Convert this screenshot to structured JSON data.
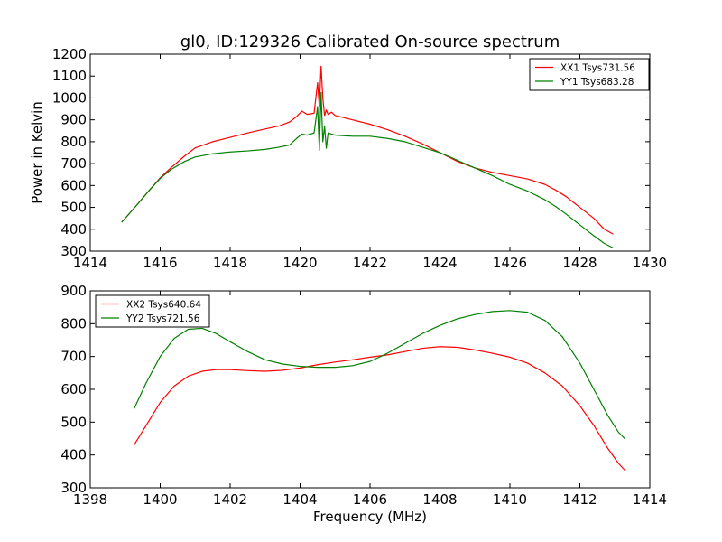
{
  "chart_data": [
    {
      "type": "line",
      "title": "gl0, ID:129326 Calibrated On-source spectrum",
      "xlabel": "",
      "ylabel": "Power in Kelvin",
      "xlim": [
        1414,
        1430
      ],
      "ylim": [
        300,
        1200
      ],
      "xticks": [
        "1414",
        "1416",
        "1418",
        "1420",
        "1422",
        "1424",
        "1426",
        "1428",
        "1430"
      ],
      "yticks": [
        "300",
        "400",
        "500",
        "600",
        "700",
        "800",
        "900",
        "1000",
        "1100",
        "1200"
      ],
      "legend_position": "upper-right",
      "grid": false,
      "series": [
        {
          "name": "XX1 Tsys731.56",
          "color": "#ff0000",
          "x": [
            1414.9,
            1415.3,
            1415.7,
            1416.0,
            1416.3,
            1416.7,
            1417.0,
            1417.5,
            1418.0,
            1418.5,
            1419.0,
            1419.4,
            1419.7,
            1419.9,
            1420.05,
            1420.2,
            1420.4,
            1420.5,
            1420.55,
            1420.6,
            1420.65,
            1420.7,
            1420.75,
            1420.8,
            1420.9,
            1421.0,
            1421.5,
            1422.0,
            1422.5,
            1423.0,
            1423.5,
            1424.0,
            1424.5,
            1425.0,
            1425.5,
            1426.0,
            1426.5,
            1427.0,
            1427.3,
            1427.6,
            1428.0,
            1428.4,
            1428.7,
            1428.95
          ],
          "y": [
            432,
            505,
            580,
            635,
            680,
            735,
            772,
            800,
            820,
            840,
            858,
            872,
            890,
            915,
            940,
            925,
            930,
            1070,
            960,
            1145,
            1000,
            920,
            945,
            925,
            935,
            920,
            900,
            880,
            855,
            825,
            790,
            750,
            710,
            680,
            660,
            645,
            630,
            605,
            580,
            550,
            500,
            450,
            400,
            378
          ]
        },
        {
          "name": "YY1 Tsys683.28",
          "color": "#008000",
          "x": [
            1414.9,
            1415.3,
            1415.7,
            1416.0,
            1416.3,
            1416.7,
            1417.0,
            1417.5,
            1418.0,
            1418.5,
            1419.0,
            1419.4,
            1419.7,
            1419.9,
            1420.05,
            1420.2,
            1420.4,
            1420.5,
            1420.55,
            1420.6,
            1420.65,
            1420.7,
            1420.75,
            1420.8,
            1420.9,
            1421.0,
            1421.5,
            1422.0,
            1422.5,
            1423.0,
            1423.5,
            1424.0,
            1424.5,
            1425.0,
            1425.5,
            1426.0,
            1426.5,
            1427.0,
            1427.3,
            1427.6,
            1428.0,
            1428.4,
            1428.7,
            1428.95
          ],
          "y": [
            432,
            505,
            580,
            632,
            672,
            710,
            730,
            745,
            753,
            758,
            765,
            775,
            785,
            815,
            835,
            830,
            840,
            960,
            760,
            1025,
            800,
            870,
            770,
            840,
            835,
            830,
            825,
            825,
            815,
            800,
            775,
            750,
            715,
            680,
            645,
            605,
            575,
            535,
            505,
            470,
            420,
            370,
            335,
            315
          ]
        }
      ]
    },
    {
      "type": "line",
      "title": "",
      "xlabel": "Frequency (MHz)",
      "ylabel": "",
      "xlim": [
        1398,
        1414
      ],
      "ylim": [
        300,
        900
      ],
      "xticks": [
        "1398",
        "1400",
        "1402",
        "1404",
        "1406",
        "1408",
        "1410",
        "1412",
        "1414"
      ],
      "yticks": [
        "300",
        "400",
        "500",
        "600",
        "700",
        "800",
        "900"
      ],
      "legend_position": "upper-left",
      "grid": false,
      "series": [
        {
          "name": "XX2 Tsys640.64",
          "color": "#ff0000",
          "x": [
            1399.25,
            1399.6,
            1400.0,
            1400.4,
            1400.8,
            1401.2,
            1401.6,
            1402.0,
            1402.5,
            1403.0,
            1403.5,
            1404.0,
            1404.5,
            1405.0,
            1405.5,
            1406.0,
            1406.5,
            1407.0,
            1407.5,
            1408.0,
            1408.5,
            1409.0,
            1409.5,
            1410.0,
            1410.5,
            1411.0,
            1411.5,
            1412.0,
            1412.4,
            1412.8,
            1413.1,
            1413.3
          ],
          "y": [
            430,
            490,
            560,
            610,
            640,
            655,
            660,
            660,
            657,
            655,
            658,
            665,
            675,
            683,
            690,
            698,
            705,
            715,
            725,
            730,
            728,
            720,
            710,
            698,
            680,
            650,
            610,
            550,
            490,
            420,
            375,
            352
          ]
        },
        {
          "name": "YY2 Tsys721.56",
          "color": "#008000",
          "x": [
            1399.25,
            1399.6,
            1400.0,
            1400.4,
            1400.8,
            1401.2,
            1401.6,
            1402.0,
            1402.5,
            1403.0,
            1403.5,
            1404.0,
            1404.5,
            1405.0,
            1405.5,
            1406.0,
            1406.5,
            1407.0,
            1407.5,
            1408.0,
            1408.5,
            1409.0,
            1409.5,
            1410.0,
            1410.5,
            1411.0,
            1411.5,
            1412.0,
            1412.4,
            1412.8,
            1413.1,
            1413.3
          ],
          "y": [
            540,
            620,
            700,
            755,
            783,
            786,
            770,
            745,
            715,
            690,
            677,
            670,
            667,
            667,
            672,
            685,
            710,
            740,
            770,
            795,
            815,
            828,
            837,
            840,
            835,
            810,
            760,
            680,
            600,
            520,
            470,
            448
          ]
        }
      ]
    }
  ]
}
